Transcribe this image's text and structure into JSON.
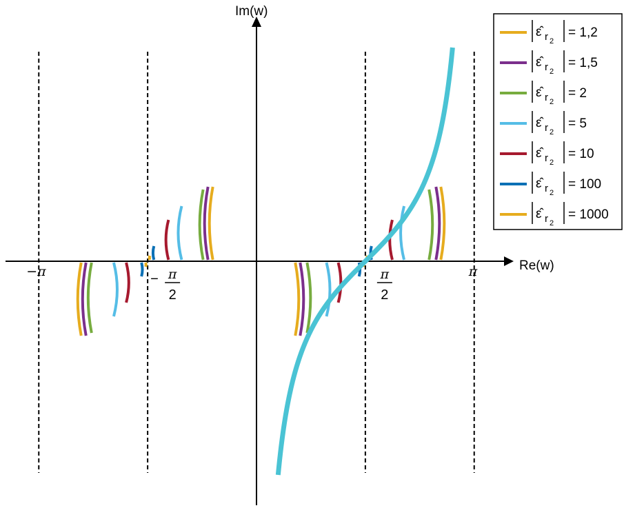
{
  "chart_data": {
    "type": "line",
    "title": "",
    "xlabel": "Re(w)",
    "ylabel": "Im(w)",
    "x_ticks": [
      {
        "value": -3.1416,
        "label": "−π"
      },
      {
        "value": -1.5708,
        "label_prefix": "−",
        "num": "π",
        "den": "2"
      },
      {
        "value": 1.5708,
        "label_prefix": "",
        "num": "π",
        "den": "2"
      },
      {
        "value": 3.1416,
        "label": "π"
      }
    ],
    "asymptotes": [
      -3.1416,
      -1.5708,
      1.5708,
      3.1416
    ],
    "xlim": [
      -3.6,
      3.6
    ],
    "ylim": [
      -3.4,
      3.2
    ],
    "grid": false,
    "legend_position": "top-right",
    "main_curve": {
      "color": "#4ac3d4",
      "relation": "x = arctan(y) + π/2",
      "y_range": [
        -3.1,
        3.1
      ]
    },
    "legend_symbol": "ε̂",
    "legend_subscript": "r",
    "legend_subsubscript": "2",
    "series": [
      {
        "name": "1,2",
        "color": "#e6ac1e",
        "marks": [
          {
            "x_center": -2.53,
            "half_height": 0.54
          },
          {
            "x_center": 0.56,
            "half_height": 0.54
          },
          {
            "x_center": -0.63,
            "half_height": 0.54
          },
          {
            "x_center": 2.66,
            "half_height": 0.54
          }
        ]
      },
      {
        "name": "1,5",
        "color": "#7b2f8c",
        "marks": [
          {
            "x_center": -2.46,
            "half_height": 0.54
          },
          {
            "x_center": 0.63,
            "half_height": 0.54
          },
          {
            "x_center": -0.7,
            "half_height": 0.54
          },
          {
            "x_center": 2.59,
            "half_height": 0.54
          }
        ]
      },
      {
        "name": "2",
        "color": "#77ac3f",
        "marks": [
          {
            "x_center": -2.38,
            "half_height": 0.52
          },
          {
            "x_center": 0.73,
            "half_height": 0.52
          },
          {
            "x_center": -0.77,
            "half_height": 0.52
          },
          {
            "x_center": 2.49,
            "half_height": 0.52
          }
        ]
      },
      {
        "name": "5",
        "color": "#55bde6",
        "marks": [
          {
            "x_center": -2.06,
            "half_height": 0.4
          },
          {
            "x_center": 1.01,
            "half_height": 0.4
          },
          {
            "x_center": -1.08,
            "half_height": 0.4
          },
          {
            "x_center": 2.13,
            "half_height": 0.4
          }
        ]
      },
      {
        "name": "10",
        "color": "#a6192e",
        "marks": [
          {
            "x_center": -1.88,
            "half_height": 0.3
          },
          {
            "x_center": 1.18,
            "half_height": 0.3
          },
          {
            "x_center": -1.27,
            "half_height": 0.3
          },
          {
            "x_center": 1.96,
            "half_height": 0.3
          }
        ]
      },
      {
        "name": "100",
        "color": "#0a70b5",
        "marks": [
          {
            "x_center": -1.66,
            "half_height": 0.11
          },
          {
            "x_center": 1.48,
            "half_height": 0.11
          },
          {
            "x_center": -1.48,
            "half_height": 0.11
          },
          {
            "x_center": 1.66,
            "half_height": 0.11
          }
        ]
      },
      {
        "name": "1000",
        "color": "#e6ac1e",
        "marks": [
          {
            "x_center": -1.6,
            "half_height": 0.04
          },
          {
            "x_center": 1.54,
            "half_height": 0.04
          },
          {
            "x_center": -1.54,
            "half_height": 0.04
          },
          {
            "x_center": 1.6,
            "half_height": 0.04
          }
        ]
      }
    ]
  }
}
